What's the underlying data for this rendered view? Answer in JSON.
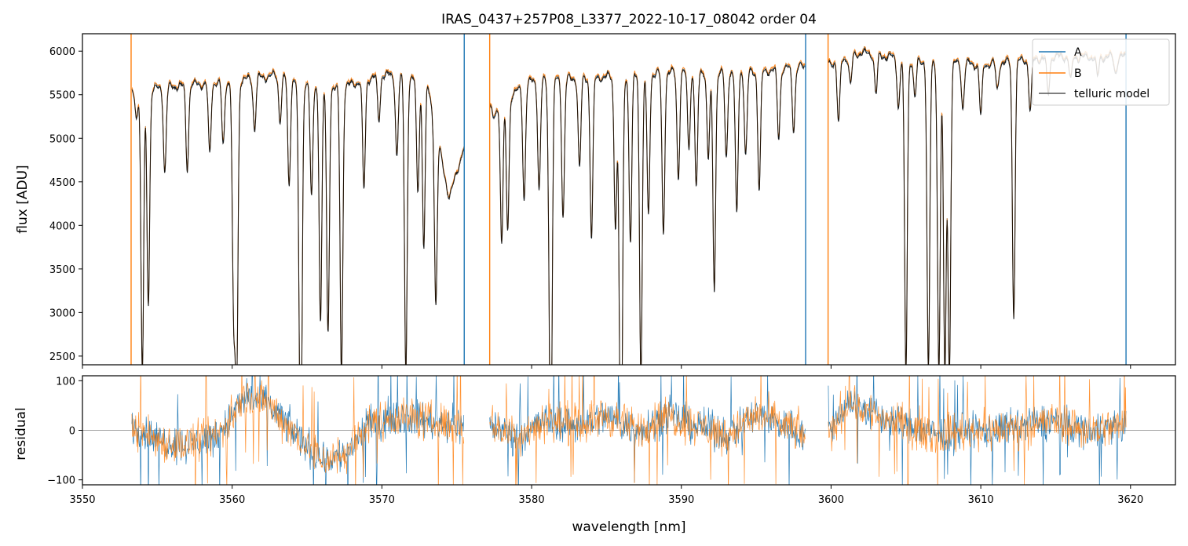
{
  "title": "IRAS_0437+257P08_L3377_2022-10-17_08042  order 04",
  "colors": {
    "A": "#1f77b4",
    "B": "#ff7f0e",
    "telluric": "#000000",
    "zero_line": "#808080"
  },
  "chart_data": [
    {
      "type": "line",
      "panel": "flux",
      "title": "IRAS_0437+257P08_L3377_2022-10-17_08042  order 04",
      "xlabel": "",
      "ylabel": "flux [ADU]",
      "xlim": [
        3550,
        3623
      ],
      "ylim": [
        2400,
        6200
      ],
      "xticks": [
        3550,
        3560,
        3570,
        3580,
        3590,
        3600,
        3610,
        3620
      ],
      "yticks": [
        2500,
        3000,
        3500,
        4000,
        4500,
        5000,
        5500,
        6000
      ],
      "tick_labels_shown": false,
      "legend": {
        "position": "top-right",
        "entries": [
          "A",
          "B",
          "telluric model"
        ]
      },
      "gaps": [
        [
          3575.5,
          3577.2
        ],
        [
          3598.3,
          3599.8
        ]
      ],
      "continuum": [
        [
          3553.3,
          5530
        ],
        [
          3556,
          5590
        ],
        [
          3560,
          5650
        ],
        [
          3563,
          5720
        ],
        [
          3567,
          5560
        ],
        [
          3570,
          5730
        ],
        [
          3573,
          5650
        ],
        [
          3574.5,
          4300
        ],
        [
          3575.4,
          4850
        ],
        [
          3577.2,
          5320
        ],
        [
          3580,
          5650
        ],
        [
          3585,
          5700
        ],
        [
          3590,
          5760
        ],
        [
          3595,
          5760
        ],
        [
          3598.3,
          5820
        ],
        [
          3599.8,
          5850
        ],
        [
          3602,
          5980
        ],
        [
          3606,
          5880
        ],
        [
          3610,
          5840
        ],
        [
          3615,
          5930
        ],
        [
          3619.7,
          5930
        ]
      ],
      "absorption_lines": [
        [
          3553.6,
          5250
        ],
        [
          3554.0,
          2300
        ],
        [
          3554.4,
          3100
        ],
        [
          3555.5,
          4600
        ],
        [
          3557.0,
          4650
        ],
        [
          3558.5,
          4800
        ],
        [
          3559.4,
          4900
        ],
        [
          3560.1,
          3020
        ],
        [
          3560.3,
          2300
        ],
        [
          3561.5,
          5100
        ],
        [
          3563.2,
          5200
        ],
        [
          3563.8,
          4450
        ],
        [
          3564.5,
          3950
        ],
        [
          3564.6,
          2300
        ],
        [
          3565.3,
          4300
        ],
        [
          3565.9,
          2900
        ],
        [
          3566.4,
          2750
        ],
        [
          3567.3,
          2300
        ],
        [
          3568.8,
          4400
        ],
        [
          3569.8,
          5200
        ],
        [
          3571.0,
          4800
        ],
        [
          3571.6,
          2300
        ],
        [
          3572.4,
          4400
        ],
        [
          3572.8,
          3750
        ],
        [
          3573.6,
          3080
        ],
        [
          3577.5,
          5200
        ],
        [
          3578.0,
          3800
        ],
        [
          3578.4,
          3950
        ],
        [
          3579.5,
          4300
        ],
        [
          3580.5,
          4400
        ],
        [
          3581.2,
          4100
        ],
        [
          3581.3,
          2300
        ],
        [
          3582.1,
          4100
        ],
        [
          3583.2,
          4650
        ],
        [
          3584.0,
          3850
        ],
        [
          3585.6,
          4000
        ],
        [
          3585.9,
          3620
        ],
        [
          3586.0,
          2300
        ],
        [
          3586.6,
          3800
        ],
        [
          3587.3,
          2300
        ],
        [
          3587.8,
          4100
        ],
        [
          3588.8,
          3900
        ],
        [
          3589.8,
          4550
        ],
        [
          3590.5,
          4900
        ],
        [
          3591.0,
          4400
        ],
        [
          3591.8,
          4750
        ],
        [
          3592.2,
          3270
        ],
        [
          3593.0,
          4750
        ],
        [
          3593.7,
          4100
        ],
        [
          3594.3,
          4800
        ],
        [
          3595.2,
          4400
        ],
        [
          3596.5,
          5000
        ],
        [
          3597.5,
          5100
        ],
        [
          3600.5,
          5150
        ],
        [
          3601.3,
          5600
        ],
        [
          3603.0,
          5500
        ],
        [
          3604.5,
          5350
        ],
        [
          3605.0,
          2300
        ],
        [
          3605.6,
          5450
        ],
        [
          3606.5,
          2300
        ],
        [
          3607.2,
          2300
        ],
        [
          3607.6,
          2300
        ],
        [
          3607.9,
          2300
        ],
        [
          3608.8,
          5350
        ],
        [
          3610.0,
          5250
        ],
        [
          3611.1,
          5550
        ],
        [
          3612.2,
          2970
        ],
        [
          3613.3,
          5300
        ],
        [
          3614.5,
          5500
        ],
        [
          3616.0,
          5650
        ],
        [
          3617.8,
          5700
        ],
        [
          3619.0,
          5750
        ]
      ],
      "spikes": [
        [
          3553.25,
          6300
        ],
        [
          3575.5,
          6300
        ],
        [
          3577.2,
          6300
        ],
        [
          3598.3,
          6300
        ],
        [
          3599.8,
          6300
        ],
        [
          3619.7,
          6300
        ]
      ],
      "series": [
        {
          "name": "A",
          "offset": 15
        },
        {
          "name": "B",
          "offset": 25
        },
        {
          "name": "telluric model",
          "offset": 0
        }
      ]
    },
    {
      "type": "line",
      "panel": "residual",
      "xlabel": "wavelength [nm]",
      "ylabel": "residual",
      "xlim": [
        3550,
        3623
      ],
      "ylim": [
        -110,
        110
      ],
      "xticks": [
        3550,
        3560,
        3570,
        3580,
        3590,
        3600,
        3610,
        3620
      ],
      "yticks": [
        -100,
        0,
        100
      ],
      "zero_line": 0,
      "gaps": [
        [
          3575.5,
          3577.2
        ],
        [
          3598.3,
          3599.8
        ]
      ],
      "trend": [
        [
          3553.3,
          10
        ],
        [
          3555,
          -20
        ],
        [
          3557,
          -30
        ],
        [
          3559,
          -10
        ],
        [
          3561,
          70
        ],
        [
          3562.5,
          50
        ],
        [
          3564,
          0
        ],
        [
          3566,
          -60
        ],
        [
          3567.5,
          -50
        ],
        [
          3569,
          10
        ],
        [
          3571,
          30
        ],
        [
          3573,
          20
        ],
        [
          3575.4,
          10
        ],
        [
          3577.3,
          10
        ],
        [
          3579,
          -10
        ],
        [
          3581,
          20
        ],
        [
          3583,
          10
        ],
        [
          3585,
          30
        ],
        [
          3587,
          0
        ],
        [
          3589,
          30
        ],
        [
          3591,
          10
        ],
        [
          3593,
          -10
        ],
        [
          3595,
          30
        ],
        [
          3597,
          10
        ],
        [
          3598.3,
          -10
        ],
        [
          3599.8,
          -20
        ],
        [
          3601,
          60
        ],
        [
          3603,
          30
        ],
        [
          3605,
          10
        ],
        [
          3607,
          -10
        ],
        [
          3609,
          0
        ],
        [
          3611,
          0
        ],
        [
          3613,
          10
        ],
        [
          3615,
          20
        ],
        [
          3617,
          0
        ],
        [
          3619.7,
          10
        ]
      ],
      "series": [
        {
          "name": "A",
          "amplitude": 32
        },
        {
          "name": "B",
          "amplitude": 35
        }
      ]
    }
  ]
}
